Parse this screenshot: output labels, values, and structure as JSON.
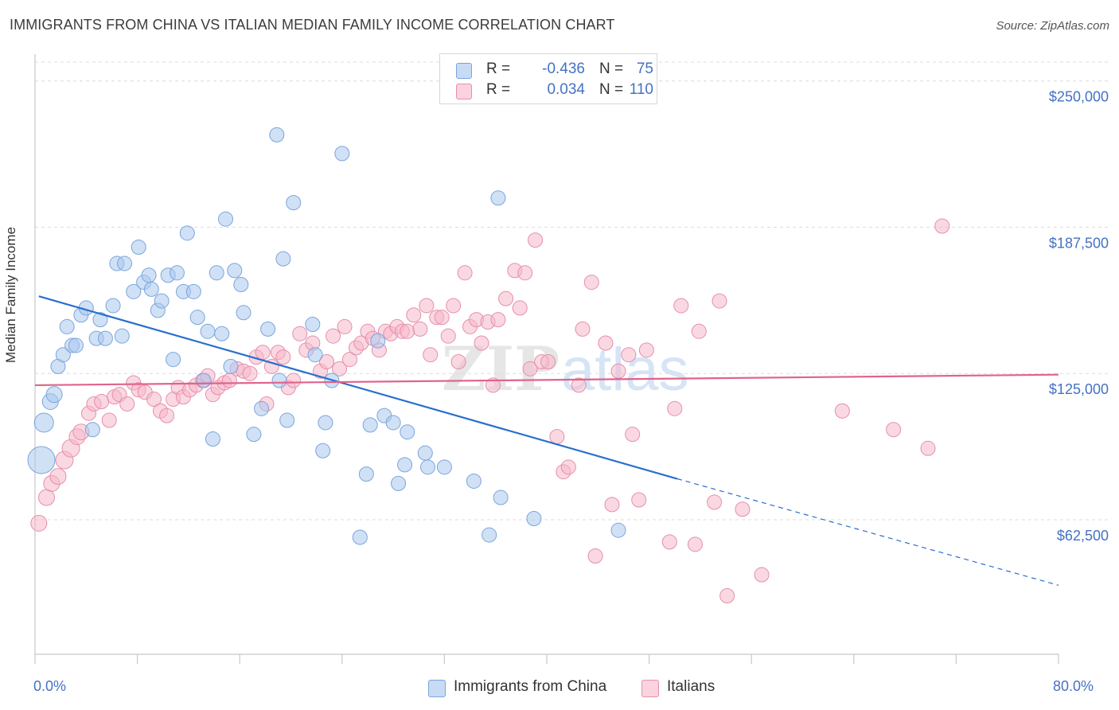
{
  "title": "IMMIGRANTS FROM CHINA VS ITALIAN MEDIAN FAMILY INCOME CORRELATION CHART",
  "source": "Source: ZipAtlas.com",
  "watermark": {
    "zip": "ZIP",
    "atlas": "atlas"
  },
  "legend_top": {
    "rows": [
      {
        "r_label": "R =",
        "r_value": "-0.436",
        "n_label": "N =",
        "n_value": "75",
        "color": "#aac8ef"
      },
      {
        "r_label": "R =",
        "r_value": "0.034",
        "n_label": "N =",
        "n_value": "110",
        "color": "#f5b8cb"
      }
    ]
  },
  "legend_bottom": {
    "items": [
      {
        "label": "Immigrants from China",
        "color": "#aac8ef"
      },
      {
        "label": "Italians",
        "color": "#f5b8cb"
      }
    ]
  },
  "colors": {
    "blue_fill": "#aac8ef",
    "blue_stroke": "#7aa5dc",
    "blue_line": "#2a6fcf",
    "pink_fill": "#f5b8cb",
    "pink_stroke": "#e58fab",
    "pink_line": "#e0638b",
    "grid": "#dcdcdc",
    "axis_text": "#4472c4"
  },
  "chart_data": {
    "type": "scatter",
    "title": "IMMIGRANTS FROM CHINA VS ITALIAN MEDIAN FAMILY INCOME CORRELATION CHART",
    "xlabel": "",
    "ylabel": "Median Family Income",
    "xlim": [
      0,
      80
    ],
    "ylim": [
      5000,
      262500
    ],
    "x_tick_labels": [
      "0.0%",
      "80.0%"
    ],
    "y_ticks": [
      62500,
      125000,
      187500,
      250000
    ],
    "y_tick_labels": [
      "$62,500",
      "$125,000",
      "$187,500",
      "$250,000"
    ],
    "grid": "horizontal dashed",
    "legend_placement": "top-center and bottom",
    "series": [
      {
        "name": "Immigrants from China",
        "r": -0.436,
        "n": 75,
        "trend": {
          "x": [
            0.3,
            50.2
          ],
          "y": [
            158000,
            80000
          ],
          "dashed_to": [
            80,
            34500
          ]
        },
        "points": [
          [
            0.5,
            88000,
            17
          ],
          [
            0.7,
            104000,
            12
          ],
          [
            1.2,
            113000,
            10
          ],
          [
            1.5,
            116000,
            10
          ],
          [
            1.8,
            128000,
            9
          ],
          [
            2.2,
            133000,
            9
          ],
          [
            2.5,
            145000,
            9
          ],
          [
            2.9,
            137000,
            9
          ],
          [
            3.2,
            137000,
            9
          ],
          [
            3.6,
            150000,
            9
          ],
          [
            4.0,
            153000,
            9
          ],
          [
            4.5,
            101000,
            9
          ],
          [
            4.8,
            140000,
            9
          ],
          [
            5.1,
            148000,
            9
          ],
          [
            5.5,
            140000,
            9
          ],
          [
            6.1,
            154000,
            9
          ],
          [
            6.4,
            172000,
            9
          ],
          [
            6.8,
            141000,
            9
          ],
          [
            7.0,
            172000,
            9
          ],
          [
            7.7,
            160000,
            9
          ],
          [
            8.1,
            179000,
            9
          ],
          [
            8.5,
            164000,
            9
          ],
          [
            8.9,
            167000,
            9
          ],
          [
            9.1,
            161000,
            9
          ],
          [
            9.6,
            152000,
            9
          ],
          [
            9.9,
            156000,
            9
          ],
          [
            10.4,
            167000,
            9
          ],
          [
            10.8,
            131000,
            9
          ],
          [
            11.1,
            168000,
            9
          ],
          [
            11.6,
            160000,
            9
          ],
          [
            11.9,
            185000,
            9
          ],
          [
            12.4,
            160000,
            9
          ],
          [
            12.7,
            149000,
            9
          ],
          [
            13.2,
            122000,
            9
          ],
          [
            13.5,
            143000,
            9
          ],
          [
            13.9,
            97000,
            9
          ],
          [
            14.2,
            168000,
            9
          ],
          [
            14.6,
            142000,
            9
          ],
          [
            14.9,
            191000,
            9
          ],
          [
            15.3,
            128000,
            9
          ],
          [
            15.6,
            169000,
            9
          ],
          [
            16.1,
            163000,
            9
          ],
          [
            16.3,
            151000,
            9
          ],
          [
            17.1,
            99000,
            9
          ],
          [
            17.7,
            110000,
            9
          ],
          [
            18.2,
            144000,
            9
          ],
          [
            18.9,
            227000,
            9
          ],
          [
            19.1,
            122000,
            9
          ],
          [
            19.4,
            174000,
            9
          ],
          [
            19.7,
            105000,
            9
          ],
          [
            20.2,
            198000,
            9
          ],
          [
            21.7,
            146000,
            9
          ],
          [
            21.9,
            133000,
            9
          ],
          [
            22.5,
            92000,
            9
          ],
          [
            22.7,
            104000,
            9
          ],
          [
            23.2,
            122000,
            9
          ],
          [
            24.0,
            219000,
            9
          ],
          [
            25.4,
            55000,
            9
          ],
          [
            25.9,
            82000,
            9
          ],
          [
            26.2,
            103000,
            9
          ],
          [
            26.8,
            139000,
            9
          ],
          [
            27.3,
            107000,
            9
          ],
          [
            28.0,
            104000,
            9
          ],
          [
            28.4,
            78000,
            9
          ],
          [
            28.9,
            86000,
            9
          ],
          [
            29.1,
            100000,
            9
          ],
          [
            30.5,
            91000,
            9
          ],
          [
            30.7,
            85000,
            9
          ],
          [
            32.0,
            85000,
            9
          ],
          [
            34.3,
            79000,
            9
          ],
          [
            35.5,
            56000,
            9
          ],
          [
            36.2,
            200000,
            9
          ],
          [
            36.4,
            72000,
            9
          ],
          [
            39.0,
            63000,
            9
          ],
          [
            45.6,
            58000,
            9
          ]
        ]
      },
      {
        "name": "Italians",
        "r": 0.034,
        "n": 110,
        "trend": {
          "x": [
            0,
            80
          ],
          "y": [
            120000,
            124500
          ]
        },
        "points": [
          [
            0.3,
            61000,
            10
          ],
          [
            0.9,
            72000,
            10
          ],
          [
            1.3,
            78000,
            10
          ],
          [
            1.8,
            81000,
            10
          ],
          [
            2.3,
            88000,
            11
          ],
          [
            2.8,
            93000,
            11
          ],
          [
            3.3,
            98000,
            10
          ],
          [
            3.6,
            100000,
            10
          ],
          [
            4.2,
            108000,
            9
          ],
          [
            4.6,
            112000,
            9
          ],
          [
            5.2,
            113000,
            9
          ],
          [
            5.8,
            105000,
            9
          ],
          [
            6.2,
            115000,
            9
          ],
          [
            6.6,
            116000,
            9
          ],
          [
            7.2,
            112000,
            9
          ],
          [
            7.7,
            121000,
            9
          ],
          [
            8.1,
            118000,
            9
          ],
          [
            8.6,
            117000,
            9
          ],
          [
            9.3,
            114000,
            9
          ],
          [
            9.8,
            109000,
            9
          ],
          [
            10.3,
            107000,
            9
          ],
          [
            10.8,
            114000,
            9
          ],
          [
            11.2,
            119000,
            9
          ],
          [
            11.6,
            115000,
            9
          ],
          [
            12.1,
            118000,
            9
          ],
          [
            12.6,
            120000,
            9
          ],
          [
            13.1,
            122000,
            9
          ],
          [
            13.5,
            124000,
            9
          ],
          [
            13.9,
            116000,
            9
          ],
          [
            14.3,
            119000,
            9
          ],
          [
            14.8,
            121000,
            9
          ],
          [
            15.2,
            122000,
            9
          ],
          [
            15.8,
            127000,
            9
          ],
          [
            16.3,
            126000,
            9
          ],
          [
            16.8,
            125000,
            9
          ],
          [
            17.3,
            132000,
            9
          ],
          [
            17.8,
            134000,
            9
          ],
          [
            18.1,
            112000,
            9
          ],
          [
            18.5,
            128000,
            9
          ],
          [
            19.0,
            134000,
            9
          ],
          [
            19.4,
            132000,
            9
          ],
          [
            19.8,
            119000,
            9
          ],
          [
            20.2,
            122000,
            9
          ],
          [
            20.7,
            142000,
            9
          ],
          [
            21.2,
            135000,
            9
          ],
          [
            21.7,
            138000,
            9
          ],
          [
            22.3,
            126000,
            9
          ],
          [
            22.8,
            130000,
            9
          ],
          [
            23.3,
            141000,
            9
          ],
          [
            23.8,
            127000,
            9
          ],
          [
            24.2,
            145000,
            9
          ],
          [
            24.6,
            131000,
            9
          ],
          [
            25.1,
            136000,
            9
          ],
          [
            25.5,
            138000,
            9
          ],
          [
            26.0,
            143000,
            9
          ],
          [
            26.4,
            140000,
            9
          ],
          [
            26.9,
            135000,
            9
          ],
          [
            27.4,
            143000,
            9
          ],
          [
            27.8,
            142000,
            9
          ],
          [
            28.3,
            145000,
            9
          ],
          [
            28.7,
            143000,
            9
          ],
          [
            29.1,
            143000,
            9
          ],
          [
            29.6,
            150000,
            9
          ],
          [
            30.1,
            144000,
            9
          ],
          [
            30.6,
            154000,
            9
          ],
          [
            30.9,
            133000,
            9
          ],
          [
            31.4,
            149000,
            9
          ],
          [
            31.8,
            149000,
            9
          ],
          [
            32.3,
            141000,
            9
          ],
          [
            32.7,
            154000,
            9
          ],
          [
            33.1,
            130000,
            9
          ],
          [
            33.6,
            168000,
            9
          ],
          [
            34.0,
            145000,
            9
          ],
          [
            34.5,
            148000,
            9
          ],
          [
            34.9,
            138000,
            9
          ],
          [
            35.4,
            147000,
            9
          ],
          [
            35.8,
            120000,
            9
          ],
          [
            36.2,
            148000,
            9
          ],
          [
            36.8,
            157000,
            9
          ],
          [
            37.5,
            169000,
            9
          ],
          [
            37.9,
            153000,
            9
          ],
          [
            38.3,
            168000,
            9
          ],
          [
            38.7,
            127000,
            9
          ],
          [
            39.1,
            182000,
            9
          ],
          [
            39.6,
            130000,
            9
          ],
          [
            40.1,
            130000,
            9
          ],
          [
            40.8,
            98000,
            9
          ],
          [
            41.3,
            83000,
            9
          ],
          [
            41.7,
            85000,
            9
          ],
          [
            42.5,
            120000,
            9
          ],
          [
            42.8,
            144000,
            9
          ],
          [
            43.5,
            164000,
            9
          ],
          [
            43.8,
            47000,
            9
          ],
          [
            44.6,
            138000,
            9
          ],
          [
            45.1,
            69000,
            9
          ],
          [
            45.6,
            126000,
            9
          ],
          [
            46.4,
            133000,
            9
          ],
          [
            46.7,
            99000,
            9
          ],
          [
            47.2,
            71000,
            9
          ],
          [
            47.8,
            135000,
            9
          ],
          [
            49.6,
            53000,
            9
          ],
          [
            50.0,
            110000,
            9
          ],
          [
            50.5,
            154000,
            9
          ],
          [
            51.6,
            52000,
            9
          ],
          [
            51.9,
            143000,
            9
          ],
          [
            53.1,
            70000,
            9
          ],
          [
            53.5,
            156000,
            9
          ],
          [
            54.1,
            30000,
            9
          ],
          [
            55.3,
            67000,
            9
          ],
          [
            56.8,
            39000,
            9
          ],
          [
            63.1,
            109000,
            9
          ],
          [
            67.1,
            101000,
            9
          ],
          [
            69.8,
            93000,
            9
          ],
          [
            70.9,
            188000,
            9
          ]
        ]
      }
    ]
  }
}
